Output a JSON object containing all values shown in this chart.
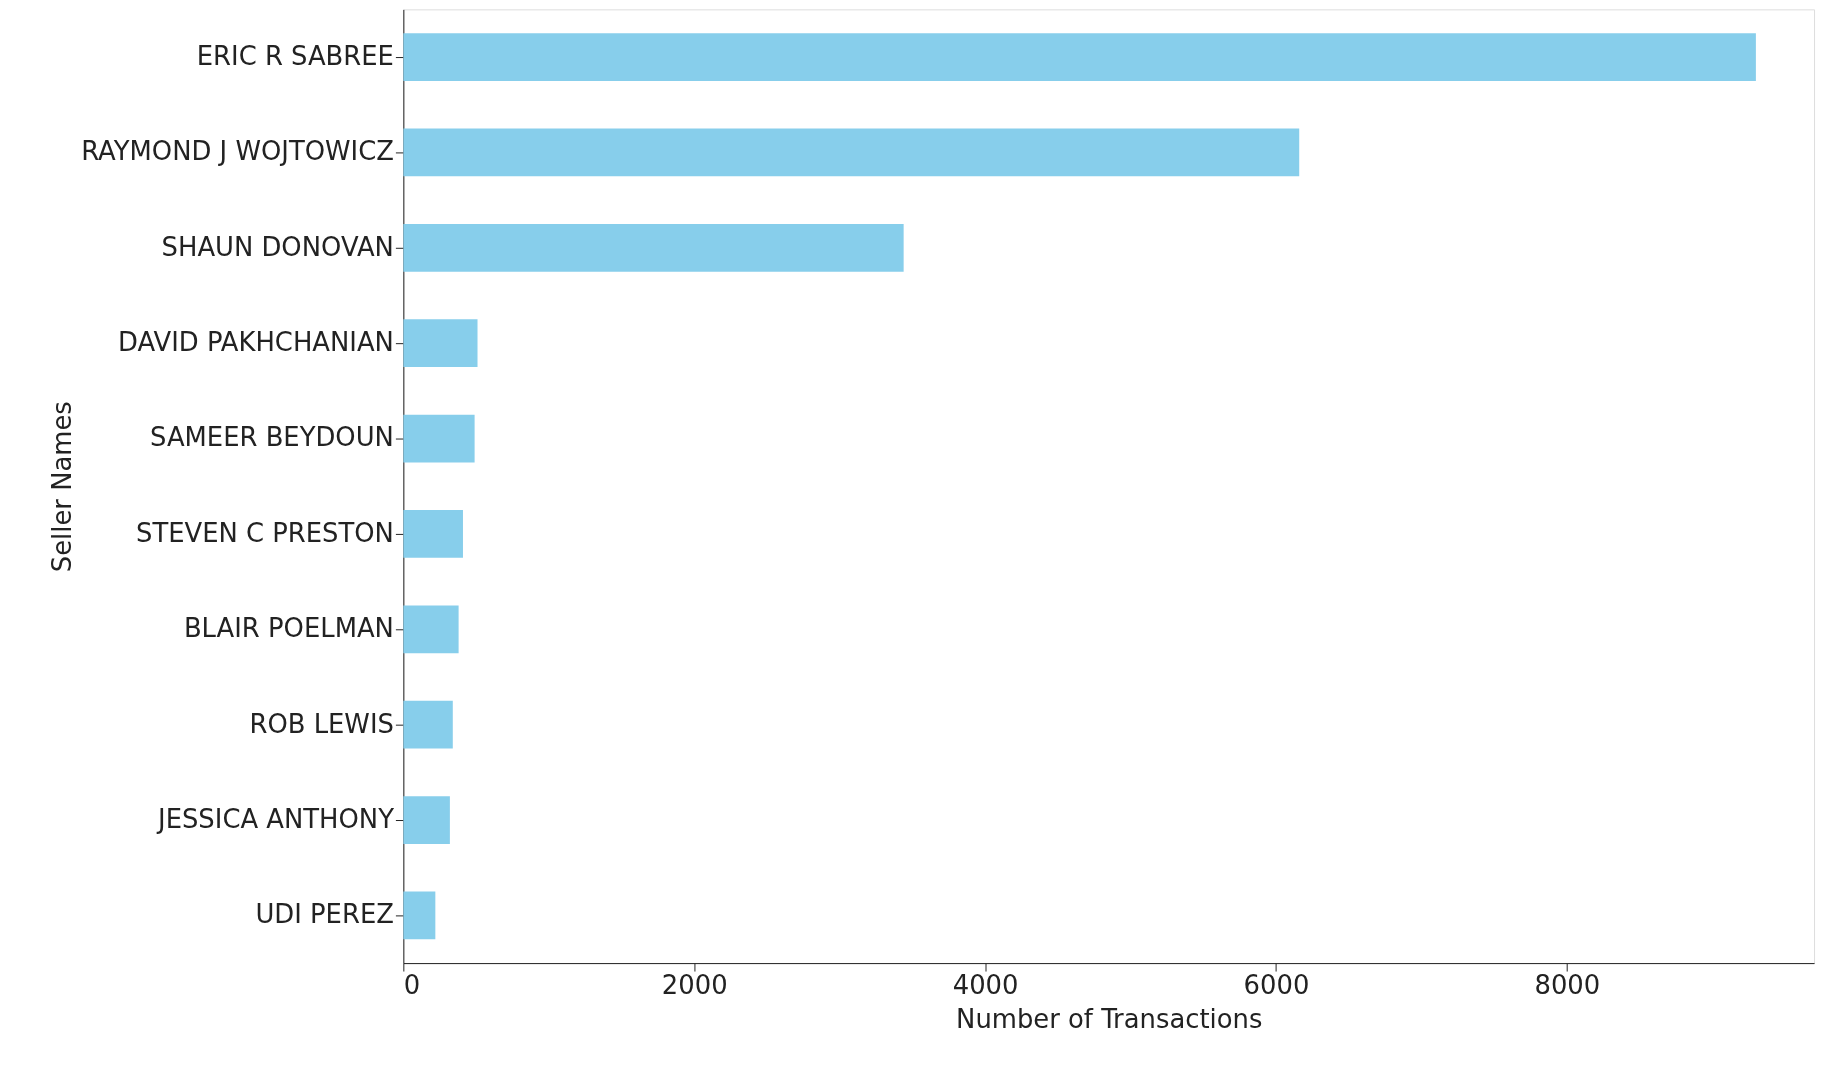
{
  "chart_data": {
    "type": "bar",
    "orientation": "horizontal",
    "xlabel": "Number of Transactions",
    "ylabel": "Seller Names",
    "categories": [
      "ERIC R SABREE",
      "RAYMOND J WOJTOWICZ",
      "SHAUN DONOVAN",
      "DAVID PAKHCHANIAN",
      "SAMEER BEYDOUN",
      "STEVEN C PRESTON",
      "BLAIR POELMAN",
      "ROB LEWIS",
      "JESSICA ANTHONY",
      "UDI PEREZ"
    ],
    "values": [
      9300,
      6160,
      3440,
      510,
      490,
      410,
      380,
      340,
      320,
      220
    ],
    "color": "#87ceeb",
    "xlim": [
      0,
      9700
    ],
    "xticks": [
      0,
      2000,
      4000,
      6000,
      8000
    ],
    "grid": false
  }
}
